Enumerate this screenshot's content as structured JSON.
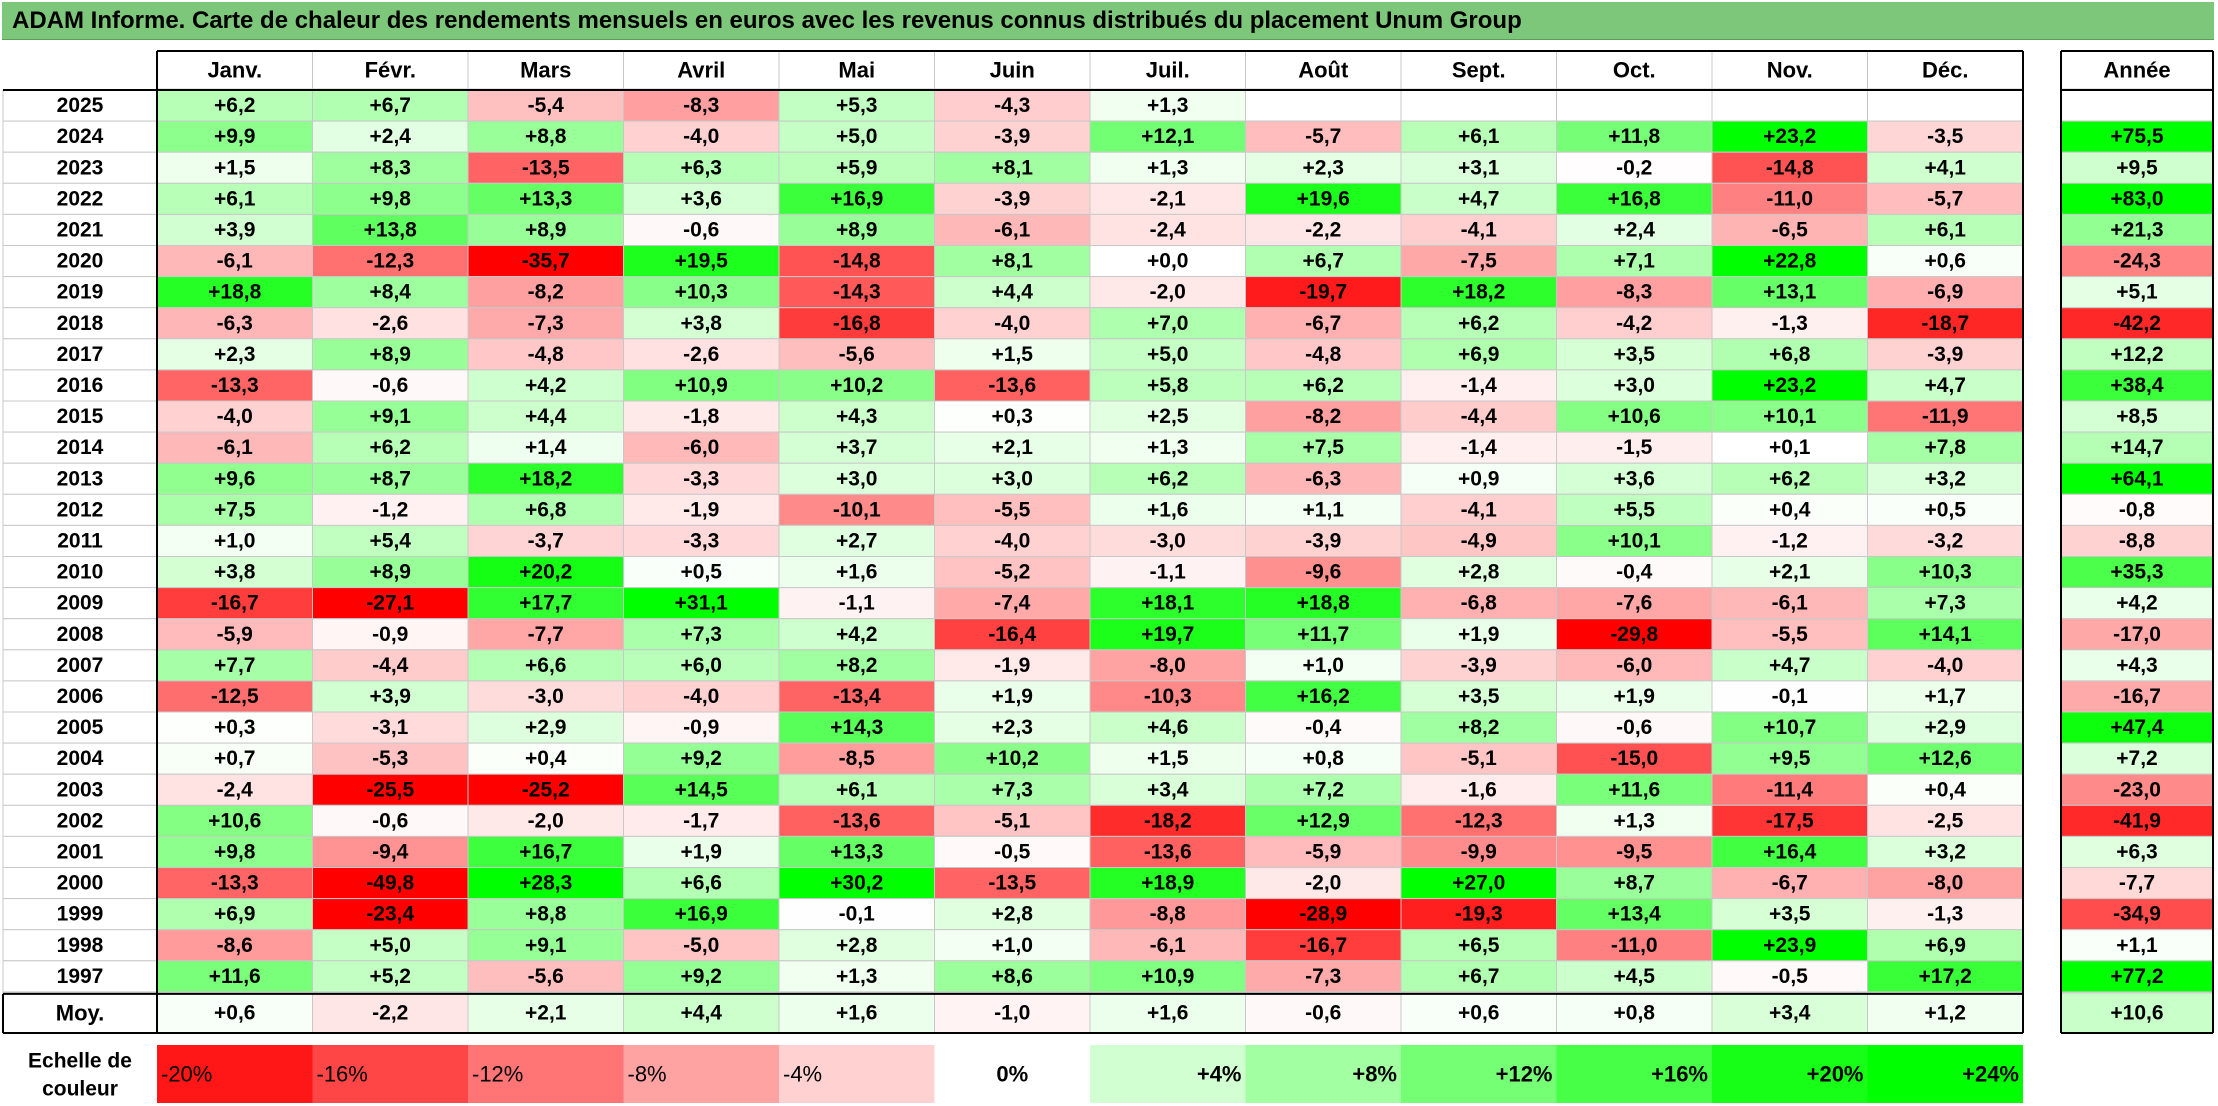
{
  "title": "ADAM Informe. Carte de chaleur des rendements mensuels en euros avec les revenus connus distribués du placement Unum Group",
  "chart_data": {
    "type": "heatmap",
    "title": "ADAM Informe. Carte de chaleur des rendements mensuels en euros avec les revenus connus distribués du placement Unum Group",
    "months": [
      "Janv.",
      "Févr.",
      "Mars",
      "Avril",
      "Mai",
      "Juin",
      "Juil.",
      "Août",
      "Sept.",
      "Oct.",
      "Nov.",
      "Déc."
    ],
    "year_header": "Année",
    "avg_label": "Moy.",
    "rows": [
      {
        "year": "2025",
        "values": [
          "+6,2",
          "+6,7",
          "-5,4",
          "-8,3",
          "+5,3",
          "-4,3",
          "+1,3",
          "",
          "",
          "",
          "",
          ""
        ],
        "annual": ""
      },
      {
        "year": "2024",
        "values": [
          "+9,9",
          "+2,4",
          "+8,8",
          "-4,0",
          "+5,0",
          "-3,9",
          "+12,1",
          "-5,7",
          "+6,1",
          "+11,8",
          "+23,2",
          "-3,5"
        ],
        "annual": "+75,5"
      },
      {
        "year": "2023",
        "values": [
          "+1,5",
          "+8,3",
          "-13,5",
          "+6,3",
          "+5,9",
          "+8,1",
          "+1,3",
          "+2,3",
          "+3,1",
          "-0,2",
          "-14,8",
          "+4,1"
        ],
        "annual": "+9,5"
      },
      {
        "year": "2022",
        "values": [
          "+6,1",
          "+9,8",
          "+13,3",
          "+3,6",
          "+16,9",
          "-3,9",
          "-2,1",
          "+19,6",
          "+4,7",
          "+16,8",
          "-11,0",
          "-5,7"
        ],
        "annual": "+83,0"
      },
      {
        "year": "2021",
        "values": [
          "+3,9",
          "+13,8",
          "+8,9",
          "-0,6",
          "+8,9",
          "-6,1",
          "-2,4",
          "-2,2",
          "-4,1",
          "+2,4",
          "-6,5",
          "+6,1"
        ],
        "annual": "+21,3"
      },
      {
        "year": "2020",
        "values": [
          "-6,1",
          "-12,3",
          "-35,7",
          "+19,5",
          "-14,8",
          "+8,1",
          "+0,0",
          "+6,7",
          "-7,5",
          "+7,1",
          "+22,8",
          "+0,6"
        ],
        "annual": "-24,3"
      },
      {
        "year": "2019",
        "values": [
          "+18,8",
          "+8,4",
          "-8,2",
          "+10,3",
          "-14,3",
          "+4,4",
          "-2,0",
          "-19,7",
          "+18,2",
          "-8,3",
          "+13,1",
          "-6,9"
        ],
        "annual": "+5,1"
      },
      {
        "year": "2018",
        "values": [
          "-6,3",
          "-2,6",
          "-7,3",
          "+3,8",
          "-16,8",
          "-4,0",
          "+7,0",
          "-6,7",
          "+6,2",
          "-4,2",
          "-1,3",
          "-18,7"
        ],
        "annual": "-42,2"
      },
      {
        "year": "2017",
        "values": [
          "+2,3",
          "+8,9",
          "-4,8",
          "-2,6",
          "-5,6",
          "+1,5",
          "+5,0",
          "-4,8",
          "+6,9",
          "+3,5",
          "+6,8",
          "-3,9"
        ],
        "annual": "+12,2"
      },
      {
        "year": "2016",
        "values": [
          "-13,3",
          "-0,6",
          "+4,2",
          "+10,9",
          "+10,2",
          "-13,6",
          "+5,8",
          "+6,2",
          "-1,4",
          "+3,0",
          "+23,2",
          "+4,7"
        ],
        "annual": "+38,4"
      },
      {
        "year": "2015",
        "values": [
          "-4,0",
          "+9,1",
          "+4,4",
          "-1,8",
          "+4,3",
          "+0,3",
          "+2,5",
          "-8,2",
          "-4,4",
          "+10,6",
          "+10,1",
          "-11,9"
        ],
        "annual": "+8,5"
      },
      {
        "year": "2014",
        "values": [
          "-6,1",
          "+6,2",
          "+1,4",
          "-6,0",
          "+3,7",
          "+2,1",
          "+1,3",
          "+7,5",
          "-1,4",
          "-1,5",
          "+0,1",
          "+7,8"
        ],
        "annual": "+14,7"
      },
      {
        "year": "2013",
        "values": [
          "+9,6",
          "+8,7",
          "+18,2",
          "-3,3",
          "+3,0",
          "+3,0",
          "+6,2",
          "-6,3",
          "+0,9",
          "+3,6",
          "+6,2",
          "+3,2"
        ],
        "annual": "+64,1"
      },
      {
        "year": "2012",
        "values": [
          "+7,5",
          "-1,2",
          "+6,8",
          "-1,9",
          "-10,1",
          "-5,5",
          "+1,6",
          "+1,1",
          "-4,1",
          "+5,5",
          "+0,4",
          "+0,5"
        ],
        "annual": "-0,8"
      },
      {
        "year": "2011",
        "values": [
          "+1,0",
          "+5,4",
          "-3,7",
          "-3,3",
          "+2,7",
          "-4,0",
          "-3,0",
          "-3,9",
          "-4,9",
          "+10,1",
          "-1,2",
          "-3,2"
        ],
        "annual": "-8,8"
      },
      {
        "year": "2010",
        "values": [
          "+3,8",
          "+8,9",
          "+20,2",
          "+0,5",
          "+1,6",
          "-5,2",
          "-1,1",
          "-9,6",
          "+2,8",
          "-0,4",
          "+2,1",
          "+10,3"
        ],
        "annual": "+35,3"
      },
      {
        "year": "2009",
        "values": [
          "-16,7",
          "-27,1",
          "+17,7",
          "+31,1",
          "-1,1",
          "-7,4",
          "+18,1",
          "+18,8",
          "-6,8",
          "-7,6",
          "-6,1",
          "+7,3"
        ],
        "annual": "+4,2"
      },
      {
        "year": "2008",
        "values": [
          "-5,9",
          "-0,9",
          "-7,7",
          "+7,3",
          "+4,2",
          "-16,4",
          "+19,7",
          "+11,7",
          "+1,9",
          "-29,8",
          "-5,5",
          "+14,1"
        ],
        "annual": "-17,0"
      },
      {
        "year": "2007",
        "values": [
          "+7,7",
          "-4,4",
          "+6,6",
          "+6,0",
          "+8,2",
          "-1,9",
          "-8,0",
          "+1,0",
          "-3,9",
          "-6,0",
          "+4,7",
          "-4,0"
        ],
        "annual": "+4,3"
      },
      {
        "year": "2006",
        "values": [
          "-12,5",
          "+3,9",
          "-3,0",
          "-4,0",
          "-13,4",
          "+1,9",
          "-10,3",
          "+16,2",
          "+3,5",
          "+1,9",
          "-0,1",
          "+1,7"
        ],
        "annual": "-16,7"
      },
      {
        "year": "2005",
        "values": [
          "+0,3",
          "-3,1",
          "+2,9",
          "-0,9",
          "+14,3",
          "+2,3",
          "+4,6",
          "-0,4",
          "+8,2",
          "-0,6",
          "+10,7",
          "+2,9"
        ],
        "annual": "+47,4"
      },
      {
        "year": "2004",
        "values": [
          "+0,7",
          "-5,3",
          "+0,4",
          "+9,2",
          "-8,5",
          "+10,2",
          "+1,5",
          "+0,8",
          "-5,1",
          "-15,0",
          "+9,5",
          "+12,6"
        ],
        "annual": "+7,2"
      },
      {
        "year": "2003",
        "values": [
          "-2,4",
          "-25,5",
          "-25,2",
          "+14,5",
          "+6,1",
          "+7,3",
          "+3,4",
          "+7,2",
          "-1,6",
          "+11,6",
          "-11,4",
          "+0,4"
        ],
        "annual": "-23,0"
      },
      {
        "year": "2002",
        "values": [
          "+10,6",
          "-0,6",
          "-2,0",
          "-1,7",
          "-13,6",
          "-5,1",
          "-18,2",
          "+12,9",
          "-12,3",
          "+1,3",
          "-17,5",
          "-2,5"
        ],
        "annual": "-41,9"
      },
      {
        "year": "2001",
        "values": [
          "+9,8",
          "-9,4",
          "+16,7",
          "+1,9",
          "+13,3",
          "-0,5",
          "-13,6",
          "-5,9",
          "-9,9",
          "-9,5",
          "+16,4",
          "+3,2"
        ],
        "annual": "+6,3"
      },
      {
        "year": "2000",
        "values": [
          "-13,3",
          "-49,8",
          "+28,3",
          "+6,6",
          "+30,2",
          "-13,5",
          "+18,9",
          "-2,0",
          "+27,0",
          "+8,7",
          "-6,7",
          "-8,0"
        ],
        "annual": "-7,7"
      },
      {
        "year": "1999",
        "values": [
          "+6,9",
          "-23,4",
          "+8,8",
          "+16,9",
          "-0,1",
          "+2,8",
          "-8,8",
          "-28,9",
          "-19,3",
          "+13,4",
          "+3,5",
          "-1,3"
        ],
        "annual": "-34,9"
      },
      {
        "year": "1998",
        "values": [
          "-8,6",
          "+5,0",
          "+9,1",
          "-5,0",
          "+2,8",
          "+1,0",
          "-6,1",
          "-16,7",
          "+6,5",
          "-11,0",
          "+23,9",
          "+6,9"
        ],
        "annual": "+1,1"
      },
      {
        "year": "1997",
        "values": [
          "+11,6",
          "+5,2",
          "-5,6",
          "+9,2",
          "+1,3",
          "+8,6",
          "+10,9",
          "-7,3",
          "+6,7",
          "+4,5",
          "-0,5",
          "+17,2"
        ],
        "annual": "+77,2"
      }
    ],
    "average": {
      "values": [
        "+0,6",
        "-2,2",
        "+2,1",
        "+4,4",
        "+1,6",
        "-1,0",
        "+1,6",
        "-0,6",
        "+0,6",
        "+0,8",
        "+3,4",
        "+1,2"
      ],
      "annual": "+10,6"
    },
    "scale_label": [
      "Echelle de",
      "couleur"
    ],
    "scale": [
      {
        "label": "-20%",
        "value": -20
      },
      {
        "label": "-16%",
        "value": -16
      },
      {
        "label": "-12%",
        "value": -12
      },
      {
        "label": "-8%",
        "value": -8
      },
      {
        "label": "-4%",
        "value": -4
      },
      {
        "label": "0%",
        "value": 0
      },
      {
        "label": "+4%",
        "value": 4
      },
      {
        "label": "+8%",
        "value": 8
      },
      {
        "label": "+12%",
        "value": 12
      },
      {
        "label": "+16%",
        "value": 16
      },
      {
        "label": "+20%",
        "value": 20
      },
      {
        "label": "+24%",
        "value": 24
      }
    ],
    "colors": {
      "title_bg": "#7dc77a",
      "neg_max": "#ff0000",
      "pos_max": "#00ff00",
      "neutral": "#ffffff"
    }
  }
}
